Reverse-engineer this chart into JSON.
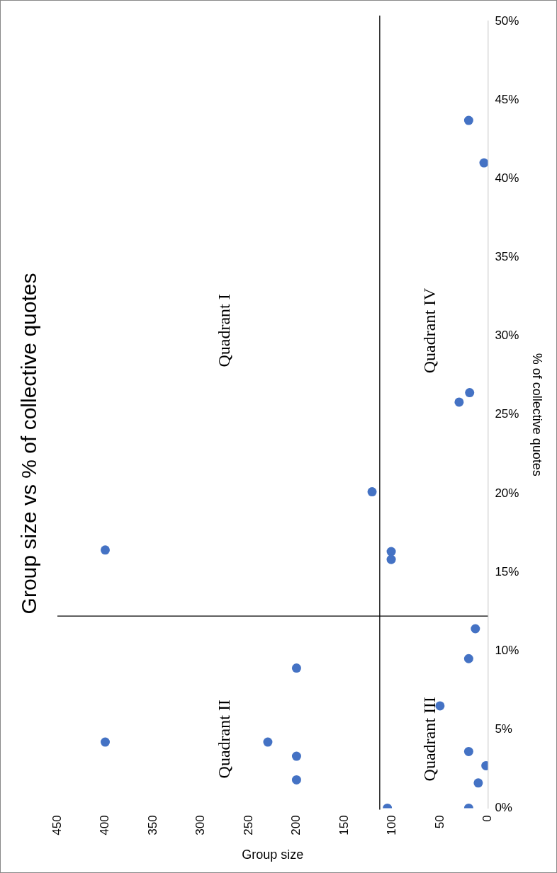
{
  "chart_data": {
    "type": "scatter",
    "title": "Group size vs % of collective quotes",
    "xlabel": "Group size",
    "ylabel": "% of collective quotes",
    "x": [
      105,
      20,
      10,
      2,
      200,
      200,
      20,
      230,
      400,
      50,
      200,
      20,
      13,
      101,
      101,
      400,
      121,
      30,
      19,
      4,
      20
    ],
    "values": [
      0,
      0,
      1.6,
      2.7,
      1.8,
      3.3,
      3.6,
      4.2,
      4.2,
      6.5,
      8.9,
      9.5,
      11.4,
      16.3,
      15.8,
      16.4,
      20.1,
      25.8,
      26.4,
      41.0,
      43.7
    ],
    "color": "#4472c4",
    "marker": "circle",
    "xlim": [
      450,
      0
    ],
    "xticks": [
      450,
      400,
      350,
      300,
      250,
      200,
      150,
      100,
      50,
      0
    ],
    "ylim": [
      0,
      50
    ],
    "yticks": [
      {
        "value": 0,
        "label": "0%"
      },
      {
        "value": 5,
        "label": "5%"
      },
      {
        "value": 10,
        "label": "10%"
      },
      {
        "value": 15,
        "label": "15%"
      },
      {
        "value": 20,
        "label": "20%"
      },
      {
        "value": 25,
        "label": "25%"
      },
      {
        "value": 30,
        "label": "30%"
      },
      {
        "value": 35,
        "label": "35%"
      },
      {
        "value": 40,
        "label": "40%"
      },
      {
        "value": 45,
        "label": "45%"
      },
      {
        "value": 50,
        "label": "50%"
      }
    ],
    "grid": false,
    "legend": false,
    "ref_lines": [
      {
        "axis": "x",
        "value": 113,
        "color": "#000000"
      },
      {
        "axis": "y",
        "value": 12.2,
        "color": "#000000"
      }
    ],
    "annotations": [
      "Quadrant I",
      "Quadrant II",
      "Quadrant III",
      "Quadrant IV"
    ]
  }
}
